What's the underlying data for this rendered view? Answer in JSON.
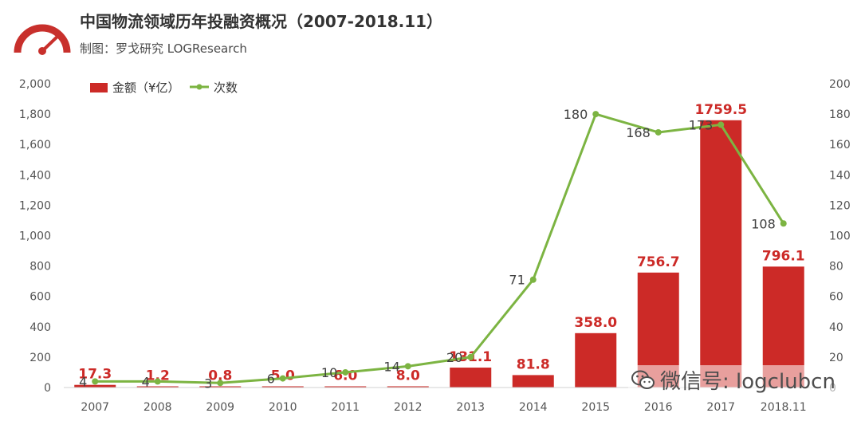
{
  "header": {
    "title": "中国物流领域历年投融资概况（2007-2018.11）",
    "subtitle": "制图：罗戈研究 LOGResearch"
  },
  "watermark": {
    "icon": "wechat-icon",
    "text": "微信号: logclubcn"
  },
  "colors": {
    "bar": "#cc2a27",
    "line": "#7cb442",
    "label": "#cc2a27",
    "axis": "#555555",
    "logo": "#c8302c"
  },
  "chart_data": {
    "type": "bar",
    "categories": [
      "2007",
      "2008",
      "2009",
      "2010",
      "2011",
      "2012",
      "2013",
      "2014",
      "2015",
      "2016",
      "2017",
      "2018.11"
    ],
    "series": [
      {
        "name": "金额（¥亿）",
        "type": "bar",
        "axis": "left",
        "values": [
          17.3,
          1.2,
          0.8,
          5.0,
          6.0,
          8.0,
          131.1,
          81.8,
          358.0,
          756.7,
          1759.5,
          796.1
        ],
        "labels": [
          "17.3",
          "1.2",
          "0.8",
          "5.0",
          "6.0",
          "8.0",
          "131.1",
          "81.8",
          "358.0",
          "756.7",
          "1759.5",
          "796.1"
        ]
      },
      {
        "name": "次数",
        "type": "line",
        "axis": "right",
        "values": [
          4,
          4,
          3,
          6,
          10,
          14,
          20,
          71,
          180,
          168,
          173,
          108
        ]
      }
    ],
    "ylim_left": [
      0,
      2000
    ],
    "ylim_right": [
      0,
      200
    ],
    "yticks_left": [
      "0",
      "200",
      "400",
      "600",
      "800",
      "1,000",
      "1,200",
      "1,400",
      "1,600",
      "1,800",
      "2,000"
    ],
    "yticks_right": [
      "0",
      "20",
      "40",
      "60",
      "80",
      "100",
      "120",
      "140",
      "160",
      "180",
      "200"
    ],
    "legend_position": "top-left",
    "grid": false
  }
}
